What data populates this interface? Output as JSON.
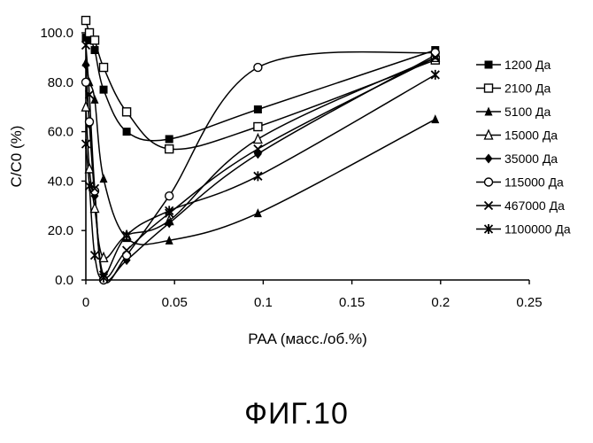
{
  "figure_caption": "ФИГ.10",
  "chart_data": {
    "type": "line",
    "xlabel": "PAA (масс./об.%)",
    "ylabel": "C/C0 (%)",
    "xlim": [
      0,
      0.25
    ],
    "ylim": [
      0,
      100
    ],
    "x_ticks": [
      "0",
      "0.05",
      "0.1",
      "0.15",
      "0.2",
      "0.25"
    ],
    "y_ticks": [
      "0.0",
      "20.0",
      "40.0",
      "60.0",
      "80.0",
      "100.0"
    ],
    "grid": false,
    "legend_position": "right",
    "series": [
      {
        "name": "1200 Да",
        "marker": "square-filled",
        "x": [
          0,
          0.002,
          0.005,
          0.01,
          0.023,
          0.047,
          0.097,
          0.197
        ],
        "y": [
          98,
          97,
          93,
          77,
          60,
          57,
          69,
          93
        ]
      },
      {
        "name": "2100 Да",
        "marker": "square-open",
        "x": [
          0,
          0.002,
          0.005,
          0.01,
          0.023,
          0.047,
          0.097,
          0.197
        ],
        "y": [
          105,
          100,
          97,
          86,
          68,
          53,
          62,
          89
        ]
      },
      {
        "name": "5100 Да",
        "marker": "triangle-filled",
        "x": [
          0,
          0.002,
          0.005,
          0.01,
          0.023,
          0.047,
          0.097,
          0.197
        ],
        "y": [
          88,
          80,
          73,
          41,
          17,
          16,
          27,
          65
        ]
      },
      {
        "name": "15000 Да",
        "marker": "triangle-open",
        "x": [
          0,
          0.002,
          0.005,
          0.01,
          0.023,
          0.047,
          0.097,
          0.197
        ],
        "y": [
          70,
          45,
          29,
          9,
          18,
          24,
          57,
          90
        ]
      },
      {
        "name": "35000 Да",
        "marker": "diamond-filled",
        "x": [
          0,
          0.002,
          0.005,
          0.01,
          0.023,
          0.047,
          0.097,
          0.197
        ],
        "y": [
          87,
          63,
          34,
          1,
          8,
          23,
          51,
          91
        ]
      },
      {
        "name": "115000 Да",
        "marker": "circle-open",
        "x": [
          0,
          0.002,
          0.005,
          0.01,
          0.023,
          0.047,
          0.097,
          0.197
        ],
        "y": [
          80,
          64,
          36,
          0,
          10,
          34,
          86,
          92
        ]
      },
      {
        "name": "467000 Да",
        "marker": "x-cross",
        "x": [
          0,
          0.002,
          0.005,
          0.01,
          0.023,
          0.047,
          0.097,
          0.197
        ],
        "y": [
          95,
          75,
          37,
          2,
          12,
          27,
          53,
          90
        ]
      },
      {
        "name": "1100000 Да",
        "marker": "asterisk",
        "x": [
          0,
          0.002,
          0.005,
          0.01,
          0.023,
          0.047,
          0.097,
          0.197
        ],
        "y": [
          55,
          38,
          10,
          1,
          18,
          28,
          42,
          83
        ]
      }
    ]
  }
}
